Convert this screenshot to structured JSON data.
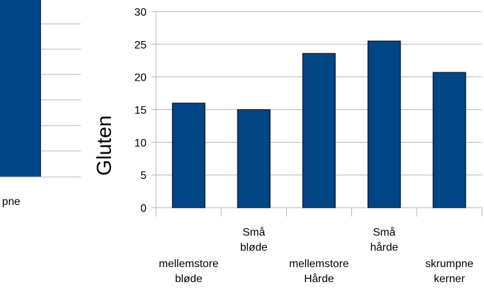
{
  "chart_data": [
    {
      "type": "bar",
      "title": "",
      "xlabel": "",
      "ylabel": "Gluten",
      "ylim": [
        0,
        30
      ],
      "yticks": [
        0,
        5,
        10,
        15,
        20,
        25,
        30
      ],
      "grid": true,
      "legend": "none",
      "categories": [
        [
          "mellemstore",
          "bløde"
        ],
        [
          "Små",
          "bløde"
        ],
        [
          "mellemstore",
          "Hårde"
        ],
        [
          "Små",
          "hårde"
        ],
        [
          "skrumpne",
          "kerner"
        ]
      ],
      "values": [
        16.0,
        15.0,
        23.6,
        25.5,
        20.7
      ],
      "bar_color": "#004586",
      "gridline_color": "#b3b3b3"
    },
    {
      "type": "bar",
      "partial": true,
      "visible_tick_label": "pne",
      "bar_color": "#004586"
    }
  ]
}
